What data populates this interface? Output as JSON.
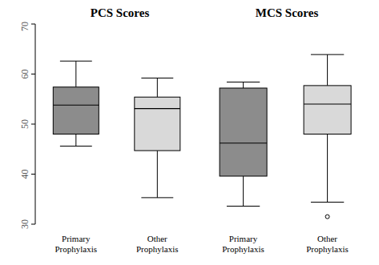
{
  "chart_data": {
    "type": "box",
    "ylim": [
      30,
      70
    ],
    "yticks": [
      30,
      40,
      50,
      60,
      70
    ],
    "panels": [
      {
        "title": "PCS Scores",
        "categories": [
          "Primary Prophylaxis",
          "Other Prophylaxis"
        ],
        "boxes": [
          {
            "min": 45.6,
            "q1": 48,
            "median": 53.8,
            "q3": 57.4,
            "max": 62.6,
            "outliers": [],
            "color": "#8c8c8c"
          },
          {
            "min": 35.3,
            "q1": 44.7,
            "median": 53.1,
            "q3": 55.4,
            "max": 59.2,
            "outliers": [],
            "color": "#d9d9d9"
          }
        ]
      },
      {
        "title": "MCS Scores",
        "categories": [
          "Primary Prophylaxis",
          "Other Prophylaxis"
        ],
        "boxes": [
          {
            "min": 33.6,
            "q1": 39.6,
            "median": 46.2,
            "q3": 57.2,
            "max": 58.4,
            "outliers": [],
            "color": "#8c8c8c"
          },
          {
            "min": 34.4,
            "q1": 48,
            "median": 54,
            "q3": 57.7,
            "max": 63.9,
            "outliers": [
              31.5
            ],
            "color": "#d9d9d9"
          }
        ]
      }
    ]
  }
}
